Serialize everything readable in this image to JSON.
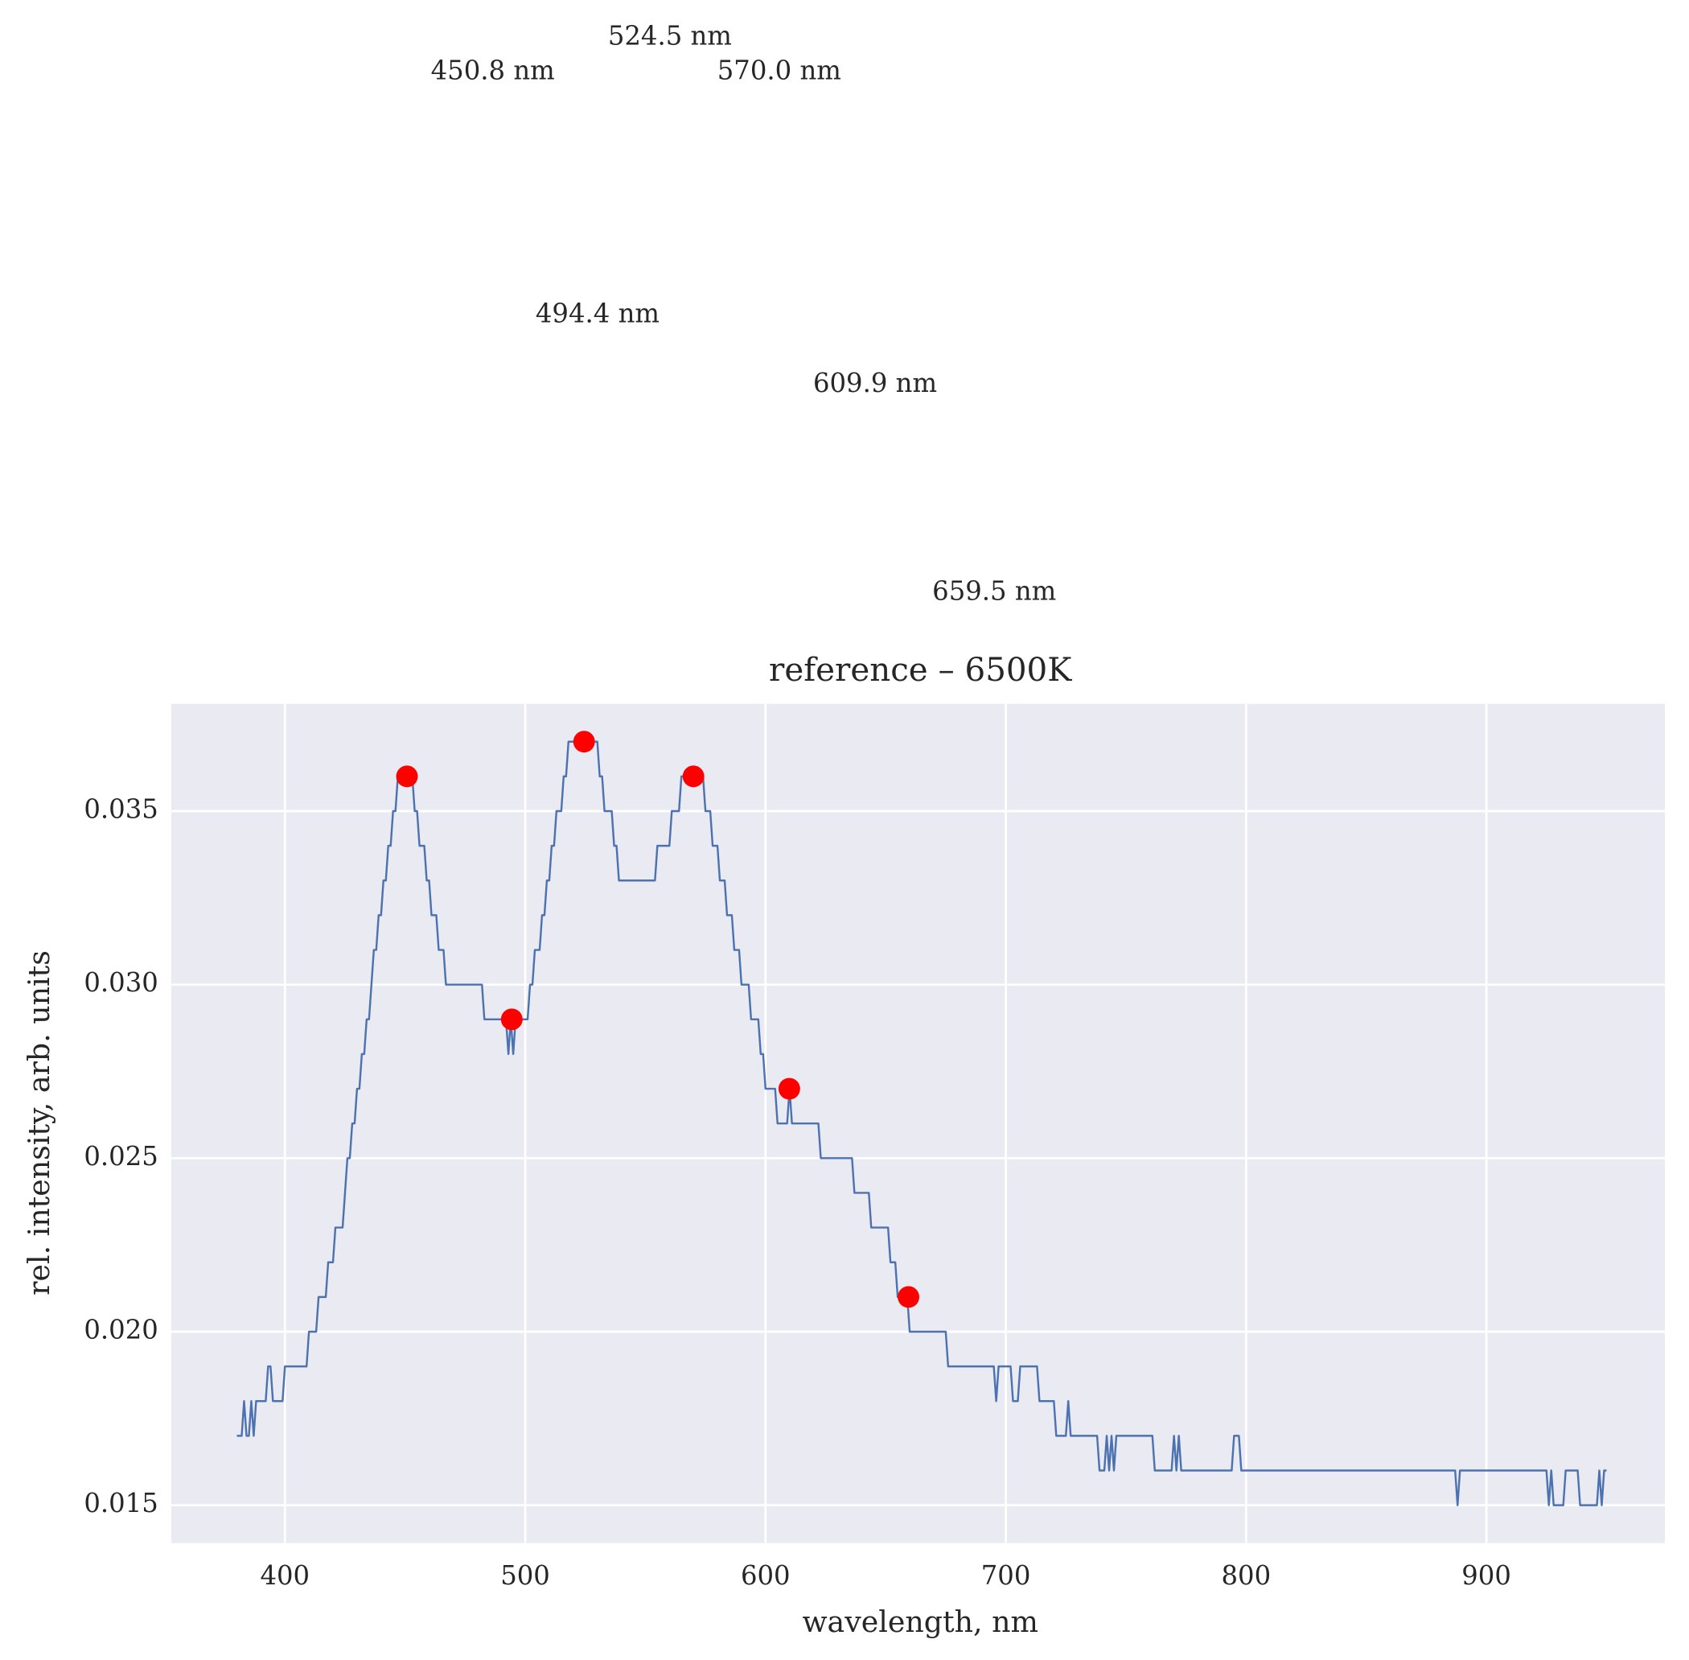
{
  "chart_data": {
    "type": "line",
    "title": "reference – 6500K",
    "x_label": "wavelength, nm",
    "y_label": "rel. intensity, arb. units",
    "xlim": [
      352.7,
      974.3
    ],
    "ylim": [
      0.01391,
      0.03809
    ],
    "xticks": [
      400,
      500,
      600,
      700,
      800,
      900
    ],
    "yticks": [
      0.015,
      {
        "value": 0.02,
        "label": "0.020"
      },
      0.025,
      {
        "value": 0.03,
        "label": "0.030"
      },
      0.035
    ],
    "grid": true,
    "background": "#eaeaf2",
    "series": [
      {
        "color": "#4c72b0",
        "x": [
          380,
          382,
          383,
          384,
          385,
          386,
          387,
          388,
          392,
          393,
          394,
          395,
          399,
          400,
          409,
          410,
          413,
          414,
          417,
          418,
          420,
          421,
          424,
          425,
          426,
          427,
          428,
          429,
          430,
          431,
          432,
          433,
          434,
          435,
          436,
          437,
          438,
          439,
          440,
          441,
          442,
          443,
          444,
          445,
          446,
          447,
          453,
          454,
          455,
          456,
          458,
          459,
          460,
          461,
          463,
          464,
          466,
          467,
          482,
          483,
          492,
          493,
          494,
          495,
          496,
          501,
          502,
          503,
          504,
          506,
          507,
          508,
          509,
          510,
          511,
          512,
          513,
          515,
          516,
          517,
          518,
          530,
          531,
          532,
          533,
          536,
          537,
          538,
          539,
          554,
          555,
          560,
          561,
          564,
          565,
          574,
          575,
          577,
          578,
          580,
          581,
          583,
          584,
          586,
          587,
          589,
          590,
          593,
          594,
          597,
          598,
          599,
          600,
          604,
          605,
          609,
          610,
          611,
          622,
          623,
          636,
          637,
          643,
          644,
          651,
          652,
          654,
          655,
          659,
          660,
          675,
          676,
          695,
          696,
          697,
          702,
          703,
          705,
          706,
          713,
          714,
          720,
          721,
          725,
          726,
          727,
          738,
          739,
          741,
          742,
          743,
          744,
          745,
          746,
          761,
          762,
          769,
          770,
          771,
          772,
          773,
          794,
          795,
          797,
          798,
          887,
          888,
          889,
          925,
          926,
          927,
          928,
          932,
          933,
          938,
          939,
          946,
          947,
          948,
          949,
          950
        ],
        "values": [
          0.017,
          0.017,
          0.018,
          0.017,
          0.017,
          0.018,
          0.017,
          0.018,
          0.018,
          0.019,
          0.019,
          0.018,
          0.018,
          0.019,
          0.019,
          0.02,
          0.02,
          0.021,
          0.021,
          0.022,
          0.022,
          0.023,
          0.023,
          0.024,
          0.025,
          0.025,
          0.026,
          0.026,
          0.027,
          0.027,
          0.028,
          0.028,
          0.029,
          0.029,
          0.03,
          0.031,
          0.031,
          0.032,
          0.032,
          0.033,
          0.033,
          0.034,
          0.034,
          0.035,
          0.035,
          0.036,
          0.036,
          0.035,
          0.035,
          0.034,
          0.034,
          0.033,
          0.033,
          0.032,
          0.032,
          0.031,
          0.031,
          0.03,
          0.03,
          0.029,
          0.029,
          0.028,
          0.029,
          0.028,
          0.029,
          0.029,
          0.03,
          0.03,
          0.031,
          0.031,
          0.032,
          0.032,
          0.033,
          0.033,
          0.034,
          0.034,
          0.035,
          0.035,
          0.036,
          0.036,
          0.037,
          0.037,
          0.036,
          0.036,
          0.035,
          0.035,
          0.034,
          0.034,
          0.033,
          0.033,
          0.034,
          0.034,
          0.035,
          0.035,
          0.036,
          0.036,
          0.035,
          0.035,
          0.034,
          0.034,
          0.033,
          0.033,
          0.032,
          0.032,
          0.031,
          0.031,
          0.03,
          0.03,
          0.029,
          0.029,
          0.028,
          0.028,
          0.027,
          0.027,
          0.026,
          0.026,
          0.027,
          0.026,
          0.026,
          0.025,
          0.025,
          0.024,
          0.024,
          0.023,
          0.023,
          0.022,
          0.022,
          0.021,
          0.021,
          0.02,
          0.02,
          0.019,
          0.019,
          0.018,
          0.019,
          0.019,
          0.018,
          0.018,
          0.019,
          0.019,
          0.018,
          0.018,
          0.017,
          0.017,
          0.018,
          0.017,
          0.017,
          0.016,
          0.016,
          0.017,
          0.016,
          0.017,
          0.016,
          0.017,
          0.017,
          0.016,
          0.016,
          0.017,
          0.016,
          0.017,
          0.016,
          0.016,
          0.017,
          0.017,
          0.016,
          0.016,
          0.015,
          0.016,
          0.016,
          0.015,
          0.016,
          0.015,
          0.015,
          0.016,
          0.016,
          0.015,
          0.015,
          0.016,
          0.015,
          0.016,
          0.016
        ]
      },
      {
        "type": "scatter",
        "color": "#ff0000",
        "x": [
          450.8,
          494.4,
          524.5,
          570.0,
          609.9,
          659.5
        ],
        "values": [
          0.036,
          0.029,
          0.037,
          0.036,
          0.027,
          0.021
        ],
        "annotations": [
          "450.8 nm",
          "494.4 nm",
          "524.5 nm",
          "570.0 nm",
          "609.9 nm",
          "659.5 nm"
        ]
      }
    ]
  }
}
